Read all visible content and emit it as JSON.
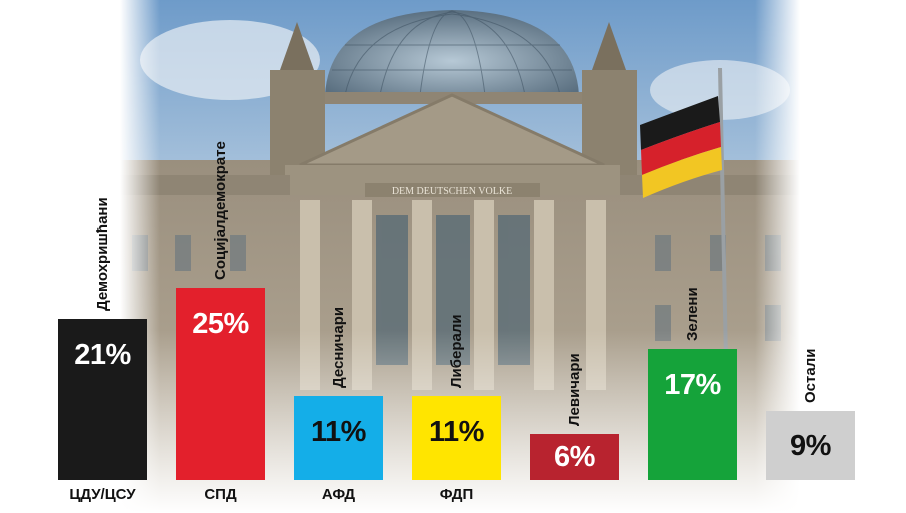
{
  "chart_data": {
    "type": "bar",
    "categories": [
      "ЦДУ/ЦСУ",
      "СПД",
      "АФД",
      "ФДП",
      "",
      "",
      ""
    ],
    "labels": [
      "Демохришћани",
      "Социјалдемократе",
      "Десничари",
      "Либерали",
      "Левичари",
      "Зелени",
      "Остали"
    ],
    "values": [
      21,
      25,
      11,
      11,
      6,
      17,
      9
    ],
    "value_labels": [
      "21%",
      "25%",
      "11%",
      "11%",
      "6%",
      "17%",
      "9%"
    ],
    "unit": "%",
    "ylim": [
      0,
      25
    ],
    "colors": [
      "#1a1a1a",
      "#e3202c",
      "#14aee8",
      "#ffe500",
      "#b8232f",
      "#15a33a",
      "#cfcfcf"
    ],
    "value_text_colors": [
      "#ffffff",
      "#ffffff",
      "#111111",
      "#111111",
      "#ffffff",
      "#ffffff",
      "#111111"
    ],
    "grid": false,
    "legend": "none",
    "background": "photo of the Reichstag building with German flag"
  }
}
